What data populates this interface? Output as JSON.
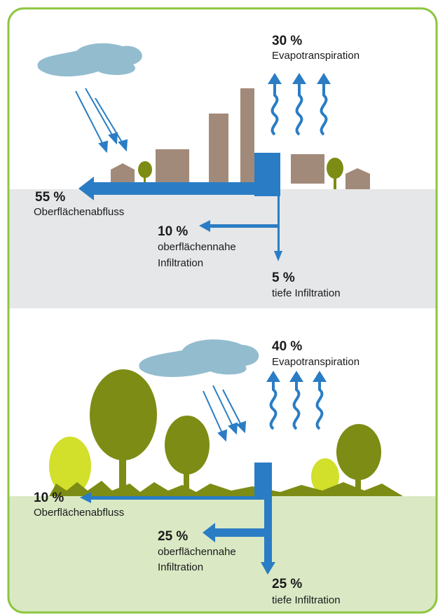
{
  "panels": [
    {
      "evapotranspiration": {
        "percent": "30 %",
        "label": "Evapotranspiration"
      },
      "runoff": {
        "percent": "55 %",
        "label": "Oberflächenabfluss"
      },
      "shallow_infiltration": {
        "percent": "10 %",
        "label": [
          "oberflächennahe",
          "Infiltration"
        ]
      },
      "deep_infiltration": {
        "percent": "5 %",
        "label": "tiefe Infiltration"
      }
    },
    {
      "evapotranspiration": {
        "percent": "40 %",
        "label": "Evapotranspiration"
      },
      "runoff": {
        "percent": "10 %",
        "label": "Oberflächenabfluss"
      },
      "shallow_infiltration": {
        "percent": "25 %",
        "label": [
          "oberflächennahe",
          "Infiltration"
        ]
      },
      "deep_infiltration": {
        "percent": "25 %",
        "label": "tiefe Infiltration"
      }
    }
  ]
}
